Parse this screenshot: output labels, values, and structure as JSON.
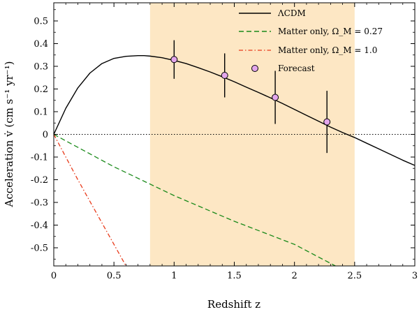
{
  "chart_data": {
    "type": "line",
    "xlabel": "Redshift z",
    "ylabel": "Acceleration v̇ (cm s⁻¹ yr⁻¹)",
    "xlim": [
      0,
      3
    ],
    "ylim": [
      -0.58,
      0.58
    ],
    "x_ticks": [
      0,
      0.5,
      1,
      1.5,
      2,
      2.5,
      3
    ],
    "x_tick_labels": [
      "0",
      "0.5",
      "1",
      "1.5",
      "2",
      "2.5",
      "3"
    ],
    "y_ticks": [
      -0.5,
      -0.4,
      -0.3,
      -0.2,
      -0.1,
      0,
      0.1,
      0.2,
      0.3,
      0.4,
      0.5
    ],
    "y_tick_labels": [
      "-0.5",
      "-0.4",
      "-0.3",
      "-0.2",
      "-0.1",
      "0",
      "0.1",
      "0.2",
      "0.3",
      "0.4",
      "0.5"
    ],
    "grid": false,
    "legend_position": "top-right",
    "shaded_region": {
      "x_start": 0.8,
      "x_end": 2.5,
      "color": "#fde7c4"
    },
    "zero_line": {
      "y": 0,
      "style": "dotted"
    },
    "series": [
      {
        "name": "ΛCDM",
        "type": "line",
        "style": "solid",
        "color": "#000000",
        "x": [
          0,
          0.1,
          0.2,
          0.3,
          0.4,
          0.5,
          0.6,
          0.7,
          0.75,
          0.8,
          0.9,
          1.0,
          1.1,
          1.2,
          1.3,
          1.4,
          1.5,
          1.6,
          1.7,
          1.8,
          1.9,
          2.0,
          2.1,
          2.2,
          2.3,
          2.4,
          2.5,
          2.6,
          2.7,
          2.8,
          2.9,
          3.0
        ],
        "y": [
          0,
          0.115,
          0.205,
          0.27,
          0.312,
          0.335,
          0.344,
          0.347,
          0.347,
          0.345,
          0.338,
          0.326,
          0.312,
          0.294,
          0.275,
          0.254,
          0.232,
          0.208,
          0.185,
          0.161,
          0.136,
          0.11,
          0.084,
          0.058,
          0.032,
          0.008,
          -0.014,
          -0.039,
          -0.064,
          -0.089,
          -0.114,
          -0.137
        ]
      },
      {
        "name": "Matter only, Ω_M = 0.27",
        "type": "line",
        "style": "dashed",
        "color": "#1a8a1a",
        "x": [
          0,
          0.5,
          1.0,
          1.5,
          2.0,
          2.34
        ],
        "y": [
          0,
          -0.143,
          -0.27,
          -0.383,
          -0.485,
          -0.58
        ]
      },
      {
        "name": "Matter only, Ω_M = 1.0",
        "type": "line",
        "style": "dashdot",
        "color": "#e83a1a",
        "x": [
          0,
          0.2,
          0.4,
          0.6
        ],
        "y": [
          0,
          -0.2,
          -0.39,
          -0.58
        ]
      },
      {
        "name": "Forecast",
        "type": "scatter",
        "color": "#e3a6ec",
        "points": [
          {
            "x": 1.0,
            "y": 0.33,
            "err": 0.085
          },
          {
            "x": 1.42,
            "y": 0.26,
            "err": 0.097
          },
          {
            "x": 1.84,
            "y": 0.163,
            "err": 0.117
          },
          {
            "x": 2.27,
            "y": 0.055,
            "err": 0.137
          }
        ]
      }
    ],
    "legend": [
      {
        "label": "ΛCDM",
        "style": "solid"
      },
      {
        "label": "Matter only, Ω_M = 0.27",
        "style": "dashed"
      },
      {
        "label": "Matter only, Ω_M = 1.0",
        "style": "dashdot"
      },
      {
        "label": "Forecast",
        "style": "marker"
      }
    ]
  }
}
